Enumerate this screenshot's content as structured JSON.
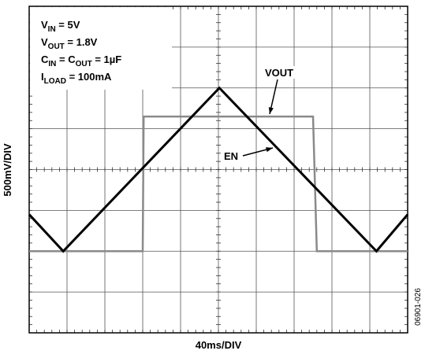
{
  "chart_data": {
    "type": "line",
    "xlabel": "40ms/DIV",
    "ylabel": "500mV/DIV",
    "figure_id": "06901-026",
    "annotations": [
      [
        "V",
        "IN",
        " = 5V"
      ],
      [
        "V",
        "OUT",
        " = 1.8V"
      ],
      [
        "C",
        "IN",
        " = C",
        "OUT",
        " = 1µF"
      ],
      [
        "I",
        "LOAD",
        " = 100mA"
      ]
    ],
    "xlim": [
      0,
      400
    ],
    "ylim": [
      0,
      4
    ],
    "xticks": [
      0,
      40,
      80,
      120,
      160,
      200,
      240,
      280,
      320,
      360,
      400
    ],
    "yticks": [
      0,
      0.5,
      1,
      1.5,
      2,
      2.5,
      3,
      3.5,
      4
    ],
    "grid": true,
    "series": [
      {
        "name": "VOUT",
        "color": "#8a8a8a",
        "x": [
          0,
          120,
          121,
          300,
          304,
          400
        ],
        "values": [
          1.0,
          1.0,
          2.65,
          2.65,
          1.0,
          1.0
        ]
      },
      {
        "name": "EN",
        "color": "#000000",
        "x": [
          0,
          36,
          201,
          367,
          400
        ],
        "values": [
          1.45,
          1.0,
          3.0,
          1.0,
          1.45
        ]
      }
    ]
  }
}
